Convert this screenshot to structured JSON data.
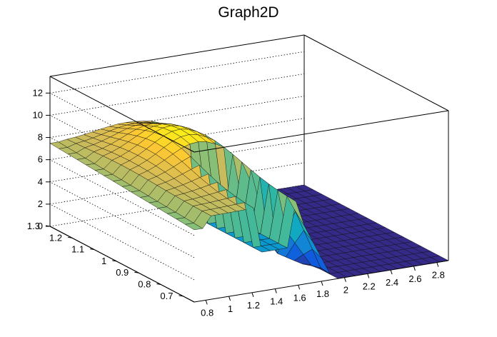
{
  "chart_data": {
    "type": "surface",
    "title": "Graph2D",
    "xlim": [
      0.7,
      2.9
    ],
    "ylim": [
      0.65,
      1.3
    ],
    "zlim": [
      0,
      13.5
    ],
    "x_ticks": [
      "0.8",
      "1",
      "1.2",
      "1.4",
      "1.6",
      "1.8",
      "2",
      "2.2",
      "2.4",
      "2.6",
      "2.8"
    ],
    "y_ticks": [
      "0.7",
      "0.8",
      "0.9",
      "1",
      "1.1",
      "1.2",
      "1.3"
    ],
    "z_ticks": [
      "0",
      "2",
      "4",
      "6",
      "8",
      "10",
      "12"
    ],
    "grid": true,
    "colormap": [
      "#352a87",
      "#0f5cdd",
      "#1481d6",
      "#06a4ca",
      "#2eb7a4",
      "#87bf77",
      "#d1bb59",
      "#fec832",
      "#f9fb0e"
    ],
    "surface": {
      "description_values": "z(x,y) sampled on a grid; plateau ~7.5-10 for x<1.6 except hole x in [1.25,1.55], y<0.95; zero for x>1.6",
      "x_range": [
        0.7,
        2.9
      ],
      "y_range": [
        0.65,
        1.3
      ],
      "nx": 30,
      "ny": 16,
      "plateau_base": 7.5,
      "dome_peak": 10.2,
      "dome_center": [
        1.35,
        1.05
      ],
      "ridge_x_start": 1.6,
      "ridge_x_end": 1.9,
      "hole_x": [
        1.25,
        1.55
      ],
      "hole_y_max": 0.95,
      "hole_level": 3.5
    }
  }
}
